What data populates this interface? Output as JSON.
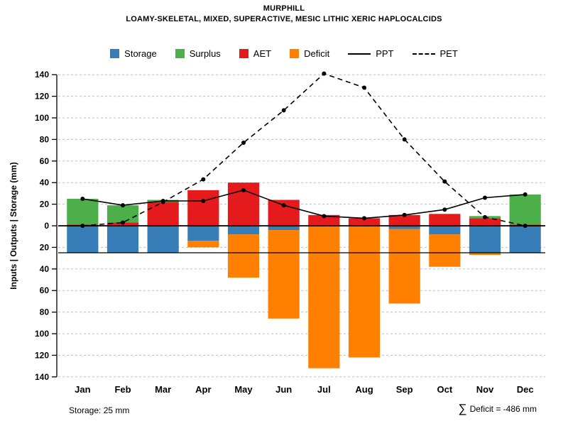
{
  "title": "MURPHILL",
  "subtitle": "LOAMY-SKELETAL, MIXED, SUPERACTIVE, MESIC LITHIC XERIC HAPLOCALCIDS",
  "colors": {
    "storage": "#377eb8",
    "surplus": "#4daf4a",
    "aet": "#e41a1c",
    "deficit": "#ff7f00",
    "line": "#000000",
    "grid": "#bdbdbd"
  },
  "legend": [
    {
      "label": "Storage",
      "kind": "swatch",
      "color": "storage"
    },
    {
      "label": "Surplus",
      "kind": "swatch",
      "color": "surplus"
    },
    {
      "label": "AET",
      "kind": "swatch",
      "color": "aet"
    },
    {
      "label": "Deficit",
      "kind": "swatch",
      "color": "deficit"
    },
    {
      "label": "PPT",
      "kind": "solid-line"
    },
    {
      "label": "PET",
      "kind": "dashed-line"
    }
  ],
  "footer": {
    "storage_label": "Storage: 25 mm",
    "deficit_sigma": "∑",
    "deficit_label": "Deficit = -486 mm"
  },
  "chart_data": {
    "type": "bar",
    "title": "MURPHILL monthly water balance",
    "categories": [
      "Jan",
      "Feb",
      "Mar",
      "Apr",
      "May",
      "Jun",
      "Jul",
      "Aug",
      "Sep",
      "Oct",
      "Nov",
      "Dec"
    ],
    "ylabel": "Inputs | Outputs | Storage     (mm)",
    "xlabel": "",
    "ylim": [
      -140,
      140
    ],
    "ytick_step": 20,
    "grid": "dashed-horizontal",
    "legend_position": "top",
    "series": [
      {
        "name": "AET",
        "direction": "up",
        "color": "aet",
        "values": [
          1,
          3,
          22,
          33,
          40,
          24,
          10,
          7,
          10,
          11,
          7,
          1
        ]
      },
      {
        "name": "Surplus",
        "direction": "up",
        "color": "surplus",
        "values": [
          24,
          16,
          2,
          0,
          0,
          0,
          0,
          0,
          0,
          0,
          2,
          28
        ]
      },
      {
        "name": "Storage",
        "direction": "down",
        "color": "storage",
        "values": [
          25,
          25,
          25,
          14,
          8,
          4,
          0,
          0,
          3,
          8,
          25,
          25
        ]
      },
      {
        "name": "Deficit",
        "direction": "down",
        "color": "deficit",
        "values": [
          0,
          0,
          0,
          6,
          40,
          82,
          132,
          122,
          69,
          30,
          2,
          0
        ]
      }
    ],
    "lines": [
      {
        "name": "PPT",
        "dashed": false,
        "values": [
          25,
          19,
          23,
          23,
          33,
          19,
          9,
          7,
          10,
          15,
          26,
          29
        ]
      },
      {
        "name": "PET",
        "dashed": true,
        "values": [
          0,
          3,
          22,
          43,
          77,
          107,
          141,
          128,
          80,
          41,
          8,
          0
        ]
      }
    ],
    "reference_lines": [
      0,
      -25
    ]
  }
}
